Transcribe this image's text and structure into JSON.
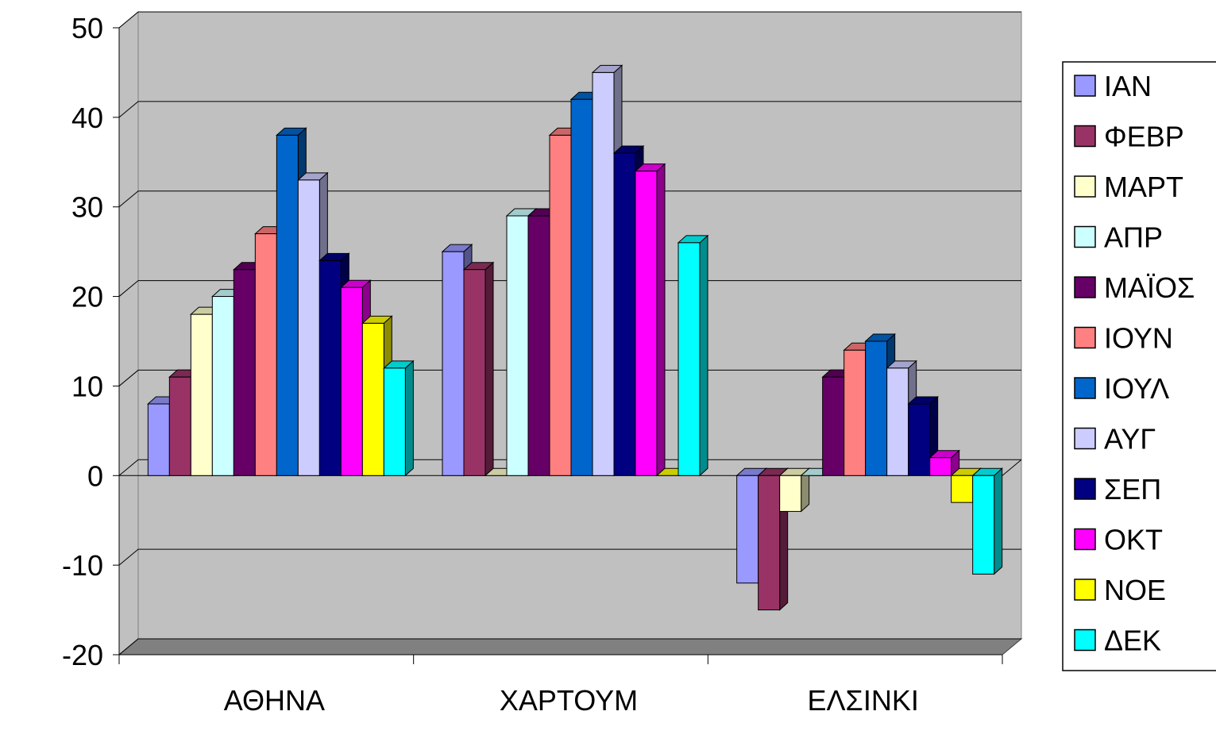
{
  "chart_data": {
    "type": "bar",
    "style": "3d-clustered-column",
    "title": "",
    "xlabel": "",
    "ylabel": "",
    "categories": [
      "ΑΘΗΝΑ",
      "ΧΑΡΤΟΥΜ",
      "ΕΛΣΙΝΚΙ"
    ],
    "ylim": [
      -20,
      50
    ],
    "yticks": [
      50,
      40,
      30,
      20,
      10,
      0,
      -10,
      -20
    ],
    "grid": true,
    "legend_position": "right",
    "series": [
      {
        "name": "ΙΑΝ",
        "color": "#9999FF",
        "values": [
          8,
          25,
          -12
        ]
      },
      {
        "name": "ΦΕΒΡ",
        "color": "#993366",
        "values": [
          11,
          23,
          -15
        ]
      },
      {
        "name": "ΜΑΡΤ",
        "color": "#FFFFCC",
        "values": [
          18,
          0,
          -4
        ]
      },
      {
        "name": "ΑΠΡ",
        "color": "#CCFFFF",
        "values": [
          20,
          29,
          0
        ]
      },
      {
        "name": "ΜΑΪΟΣ",
        "color": "#660066",
        "values": [
          23,
          29,
          11
        ]
      },
      {
        "name": "ΙΟΥΝ",
        "color": "#FF8080",
        "values": [
          27,
          38,
          14
        ]
      },
      {
        "name": "ΙΟΥΛ",
        "color": "#0066CC",
        "values": [
          38,
          42,
          15
        ]
      },
      {
        "name": "ΑΥΓ",
        "color": "#CCCCFF",
        "values": [
          33,
          45,
          12
        ]
      },
      {
        "name": "ΣΕΠ",
        "color": "#000080",
        "values": [
          24,
          36,
          8
        ]
      },
      {
        "name": "ΟΚΤ",
        "color": "#FF00FF",
        "values": [
          21,
          34,
          2
        ]
      },
      {
        "name": "ΝΟΕ",
        "color": "#FFFF00",
        "values": [
          17,
          0,
          -3
        ]
      },
      {
        "name": "ΔΕΚ",
        "color": "#00FFFF",
        "values": [
          12,
          26,
          -11
        ]
      }
    ],
    "colors": {
      "wall": "#C0C0C0",
      "floor": "#808080",
      "gridline": "#000000"
    }
  }
}
